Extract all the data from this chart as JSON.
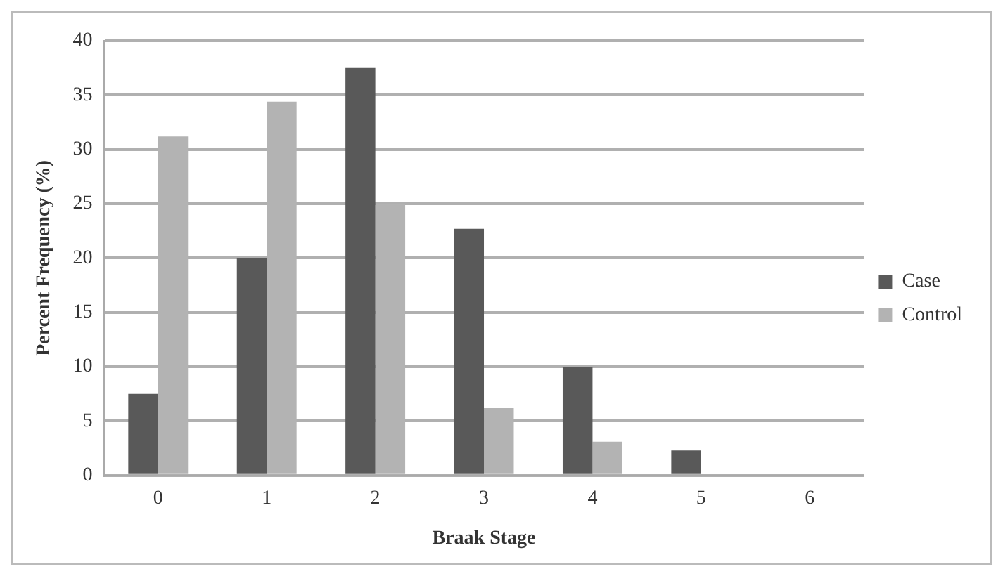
{
  "chart_data": {
    "type": "bar",
    "xlabel": "Braak Stage",
    "ylabel": "Percent Frequency (%)",
    "categories": [
      "0",
      "1",
      "2",
      "3",
      "4",
      "5",
      "6"
    ],
    "series": [
      {
        "name": "Case",
        "color": "#595959",
        "values": [
          7.5,
          20,
          37.5,
          22.7,
          10,
          2.3,
          0
        ]
      },
      {
        "name": "Control",
        "color": "#b3b3b3",
        "values": [
          31.2,
          34.4,
          25,
          6.2,
          3.1,
          0,
          0
        ]
      }
    ],
    "ylim": [
      0,
      40
    ],
    "yticks": [
      0,
      5,
      10,
      15,
      20,
      25,
      30,
      35,
      40
    ],
    "grid": "y",
    "legend": "right"
  }
}
